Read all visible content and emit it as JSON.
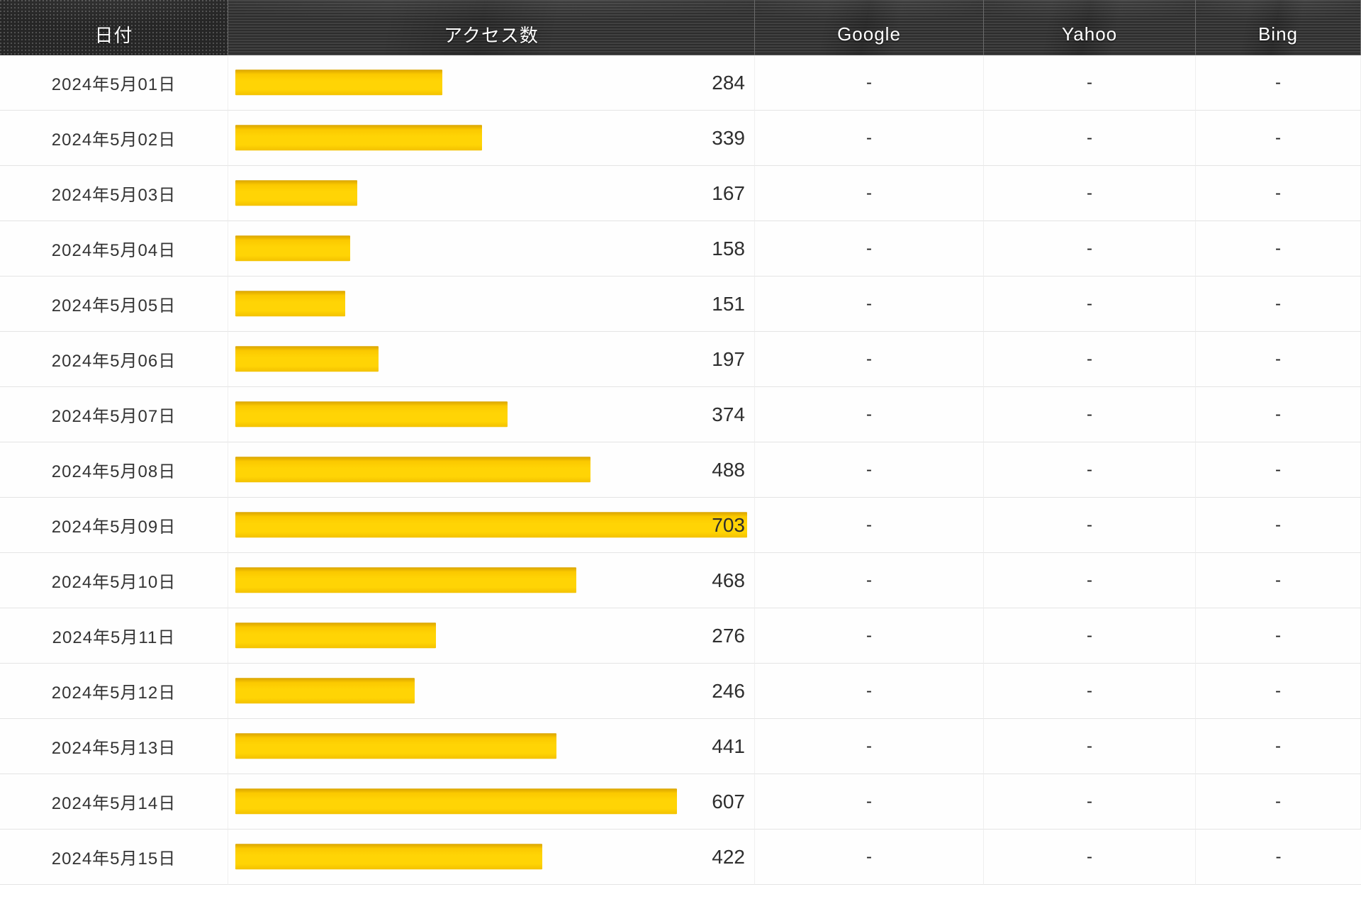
{
  "chart_data": {
    "type": "bar",
    "orientation": "horizontal",
    "title": "",
    "categories": [
      "2024年5月01日",
      "2024年5月02日",
      "2024年5月03日",
      "2024年5月04日",
      "2024年5月05日",
      "2024年5月06日",
      "2024年5月07日",
      "2024年5月08日",
      "2024年5月09日",
      "2024年5月10日",
      "2024年5月11日",
      "2024年5月12日",
      "2024年5月13日",
      "2024年5月14日",
      "2024年5月15日"
    ],
    "values": [
      284,
      339,
      167,
      158,
      151,
      197,
      374,
      488,
      703,
      468,
      276,
      246,
      441,
      607,
      422
    ],
    "series": [
      {
        "name": "アクセス数",
        "values": [
          284,
          339,
          167,
          158,
          151,
          197,
          374,
          488,
          703,
          468,
          276,
          246,
          441,
          607,
          422
        ]
      },
      {
        "name": "Google",
        "values": [
          "-",
          "-",
          "-",
          "-",
          "-",
          "-",
          "-",
          "-",
          "-",
          "-",
          "-",
          "-",
          "-",
          "-",
          "-"
        ]
      },
      {
        "name": "Yahoo",
        "values": [
          "-",
          "-",
          "-",
          "-",
          "-",
          "-",
          "-",
          "-",
          "-",
          "-",
          "-",
          "-",
          "-",
          "-",
          "-"
        ]
      },
      {
        "name": "Bing",
        "values": [
          "-",
          "-",
          "-",
          "-",
          "-",
          "-",
          "-",
          "-",
          "-",
          "-",
          "-",
          "-",
          "-",
          "-",
          "-"
        ]
      }
    ],
    "value_axis_range": [
      0,
      703
    ],
    "bar_color": "#ffd103",
    "legend": "none",
    "grid": "off"
  },
  "table": {
    "columns": [
      {
        "id": "date",
        "label": "日付"
      },
      {
        "id": "count",
        "label": "アクセス数"
      },
      {
        "id": "google",
        "label": "Google"
      },
      {
        "id": "yahoo",
        "label": "Yahoo"
      },
      {
        "id": "bing",
        "label": "Bing"
      }
    ],
    "max_count": 703,
    "rows": [
      {
        "date": "2024年5月01日",
        "count": 284,
        "google": "-",
        "yahoo": "-",
        "bing": "-"
      },
      {
        "date": "2024年5月02日",
        "count": 339,
        "google": "-",
        "yahoo": "-",
        "bing": "-"
      },
      {
        "date": "2024年5月03日",
        "count": 167,
        "google": "-",
        "yahoo": "-",
        "bing": "-"
      },
      {
        "date": "2024年5月04日",
        "count": 158,
        "google": "-",
        "yahoo": "-",
        "bing": "-"
      },
      {
        "date": "2024年5月05日",
        "count": 151,
        "google": "-",
        "yahoo": "-",
        "bing": "-"
      },
      {
        "date": "2024年5月06日",
        "count": 197,
        "google": "-",
        "yahoo": "-",
        "bing": "-"
      },
      {
        "date": "2024年5月07日",
        "count": 374,
        "google": "-",
        "yahoo": "-",
        "bing": "-"
      },
      {
        "date": "2024年5月08日",
        "count": 488,
        "google": "-",
        "yahoo": "-",
        "bing": "-"
      },
      {
        "date": "2024年5月09日",
        "count": 703,
        "google": "-",
        "yahoo": "-",
        "bing": "-"
      },
      {
        "date": "2024年5月10日",
        "count": 468,
        "google": "-",
        "yahoo": "-",
        "bing": "-"
      },
      {
        "date": "2024年5月11日",
        "count": 276,
        "google": "-",
        "yahoo": "-",
        "bing": "-"
      },
      {
        "date": "2024年5月12日",
        "count": 246,
        "google": "-",
        "yahoo": "-",
        "bing": "-"
      },
      {
        "date": "2024年5月13日",
        "count": 441,
        "google": "-",
        "yahoo": "-",
        "bing": "-"
      },
      {
        "date": "2024年5月14日",
        "count": 607,
        "google": "-",
        "yahoo": "-",
        "bing": "-"
      },
      {
        "date": "2024年5月15日",
        "count": 422,
        "google": "-",
        "yahoo": "-",
        "bing": "-"
      }
    ],
    "colors": {
      "header_bg": "#333333",
      "header_text": "#ffffff",
      "row_bg": "#fefefe",
      "row_border": "#e4e4e4",
      "body_text": "#333333",
      "bar_gold": "#ffd405"
    }
  }
}
